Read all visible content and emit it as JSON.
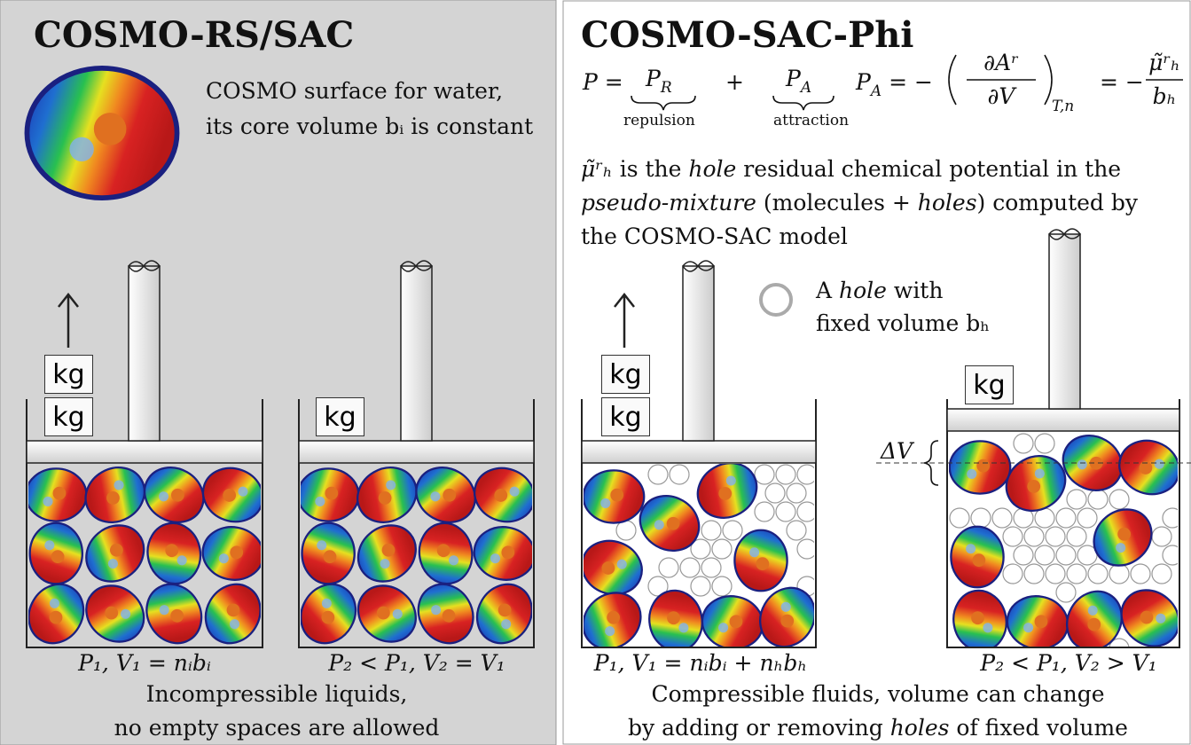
{
  "left": {
    "title": "COSMO-RS/SAC",
    "caption": [
      "COSMO surface for water,",
      "its core volume bᵢ is constant"
    ],
    "cylinders": [
      {
        "weights": [
          "kg",
          "kg"
        ],
        "label": "P₁, V₁ = nᵢbᵢ"
      },
      {
        "weights": [
          "kg"
        ],
        "label": "P₂ < P₁, V₂ = V₁"
      }
    ],
    "footer": [
      "Incompressible liquids,",
      "no empty spaces are allowed"
    ]
  },
  "right": {
    "title": "COSMO-SAC-Phi",
    "equation": {
      "lhs": "P =",
      "plus": "+",
      "term1": {
        "symbol": "P",
        "sub": "R",
        "label": "repulsion"
      },
      "term2": {
        "symbol": "P",
        "sub": "A",
        "label": "attraction"
      },
      "definition": {
        "symbol": "P",
        "sub": "A",
        "eq": "= −",
        "num": "∂Aʳ",
        "den": "∂V",
        "subscript": "T,n",
        "eq2": "= −",
        "num2": "μ̃ʳₕ",
        "den2": "bₕ"
      }
    },
    "paragraph": [
      [
        "μ̃ʳₕ",
        " is the ",
        "hole",
        " residual chemical potential in the"
      ],
      [
        "pseudo-mixture",
        " (molecules + ",
        "holes",
        ") computed by"
      ],
      [
        "the COSMO-SAC model"
      ]
    ],
    "hole_legend": [
      [
        "A ",
        "hole",
        " with"
      ],
      [
        "fixed volume bₕ"
      ]
    ],
    "cylinders": [
      {
        "weights": [
          "kg",
          "kg"
        ],
        "label": "P₁, V₁ = nᵢbᵢ + nₕbₕ"
      },
      {
        "weights": [
          "kg"
        ],
        "label": "P₂ < P₁, V₂ > V₁",
        "delta": "ΔV"
      }
    ],
    "footer": [
      [
        "Compressible fluids, volume can change"
      ],
      [
        "by adding or removing ",
        "holes",
        " of fixed volume"
      ]
    ]
  }
}
